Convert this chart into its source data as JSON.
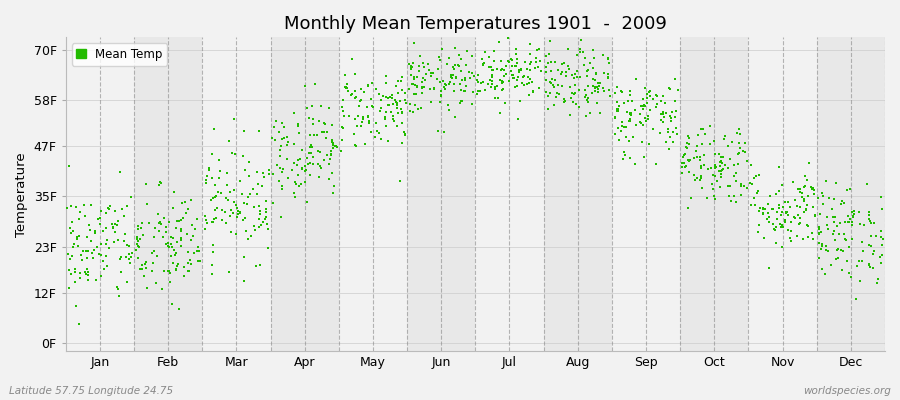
{
  "title": "Monthly Mean Temperatures 1901  -  2009",
  "ylabel": "Temperature",
  "xlabel_labels": [
    "Jan",
    "Feb",
    "Mar",
    "Apr",
    "May",
    "Jun",
    "Jul",
    "Aug",
    "Sep",
    "Oct",
    "Nov",
    "Dec"
  ],
  "ytick_labels": [
    "0F",
    "12F",
    "23F",
    "35F",
    "47F",
    "58F",
    "70F"
  ],
  "ytick_values": [
    0,
    12,
    23,
    35,
    47,
    58,
    70
  ],
  "ylim": [
    -2,
    73
  ],
  "legend_label": "Mean Temp",
  "dot_color": "#22bb00",
  "bg_color": "#f2f2f2",
  "band_color_light": "#f2f2f2",
  "band_color_dark": "#e8e8e8",
  "dash_color": "#888888",
  "bottom_left_text": "Latitude 57.75 Longitude 24.75",
  "bottom_right_text": "worldspecies.org",
  "monthly_mean_F": [
    23,
    23,
    34,
    46,
    56,
    62,
    65,
    62,
    54,
    43,
    32,
    26
  ],
  "monthly_std_F": [
    7,
    7,
    7,
    6,
    5,
    4,
    4,
    4,
    5,
    5,
    5,
    6
  ],
  "n_years": 109,
  "seed": 42
}
